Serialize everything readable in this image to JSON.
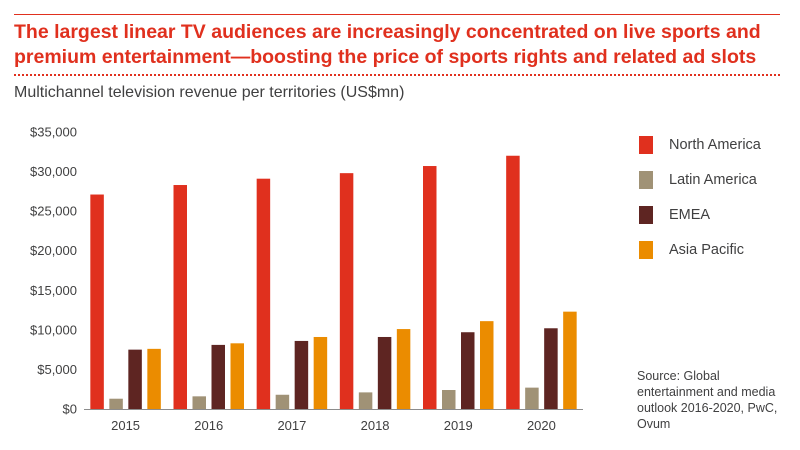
{
  "headline": "The largest linear TV audiences are increasingly concentrated on live sports and premium entertainment—boosting the price of sports rights and related ad slots",
  "source": "Source: Global entertainment and media outlook 2016-2020, PwC, Ovum",
  "colors": {
    "accent": "#e0301e",
    "text": "#404041"
  },
  "chart_data": {
    "type": "bar",
    "title": "Multichannel television revenue per territories (US$mn)",
    "categories": [
      "2015",
      "2016",
      "2017",
      "2018",
      "2019",
      "2020"
    ],
    "ylim": [
      0,
      35000
    ],
    "yticks": [
      0,
      5000,
      10000,
      15000,
      20000,
      25000,
      30000,
      35000
    ],
    "ytick_labels": [
      "$0",
      "$5,000",
      "$10,000",
      "$15,000",
      "$20,000",
      "$25,000",
      "$30,000",
      "$35,000"
    ],
    "grid": false,
    "legend_position": "right",
    "series": [
      {
        "name": "North America",
        "color": "#e0301e",
        "values": [
          27100,
          28300,
          29100,
          29800,
          30700,
          32000
        ]
      },
      {
        "name": "Latin America",
        "color": "#a09276",
        "values": [
          1300,
          1600,
          1800,
          2100,
          2400,
          2700
        ]
      },
      {
        "name": "EMEA",
        "color": "#5e2522",
        "values": [
          7500,
          8100,
          8600,
          9100,
          9700,
          10200
        ]
      },
      {
        "name": "Asia Pacific",
        "color": "#eb8c00",
        "values": [
          7600,
          8300,
          9100,
          10100,
          11100,
          12300
        ]
      }
    ]
  }
}
